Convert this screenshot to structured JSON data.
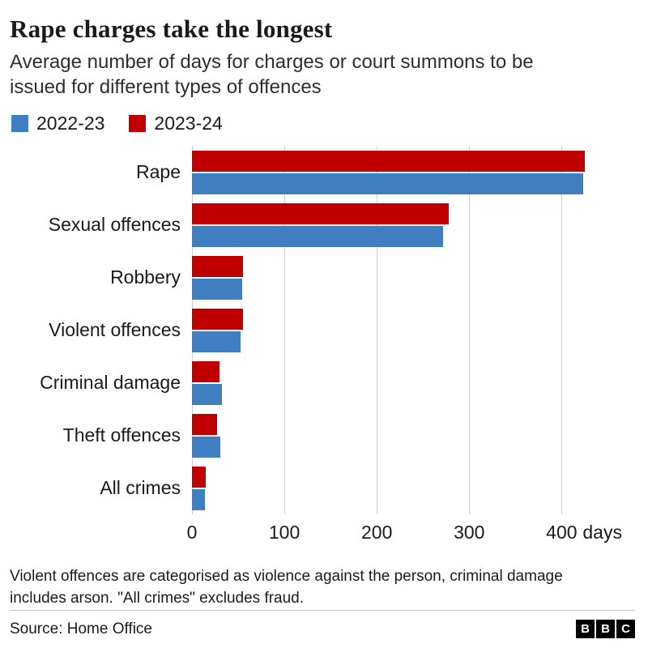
{
  "header": {
    "title": "Rape charges take the longest",
    "subtitle": "Average number of days for charges or court summons to be issued for different types of offences"
  },
  "legend": [
    {
      "label": "2022-23",
      "color": "#3F7EC0"
    },
    {
      "label": "2023-24",
      "color": "#C00000"
    }
  ],
  "chart_data": {
    "type": "bar",
    "orientation": "horizontal",
    "title": "Rape charges take the longest",
    "xlabel": "days",
    "ylabel": "",
    "categories": [
      "Rape",
      "Sexual offences",
      "Robbery",
      "Violent offences",
      "Criminal damage",
      "Theft offences",
      "All crimes"
    ],
    "series": [
      {
        "name": "2023-24",
        "color": "#C00000",
        "values": [
          425,
          278,
          55,
          55,
          30,
          27,
          15
        ]
      },
      {
        "name": "2022-23",
        "color": "#3F7EC0",
        "values": [
          423,
          272,
          54,
          53,
          32,
          31,
          14
        ]
      }
    ],
    "x_ticks": [
      0,
      100,
      200,
      300,
      400
    ],
    "x_axis_suffix": "days",
    "xlim": [
      0,
      440
    ],
    "grid": true,
    "legend_position": "top"
  },
  "footnote": "Violent offences are categorised as violence against the person, criminal damage includes arson. \"All crimes\" excludes fraud.",
  "source": "Source: Home Office",
  "logo": [
    "B",
    "B",
    "C"
  ]
}
